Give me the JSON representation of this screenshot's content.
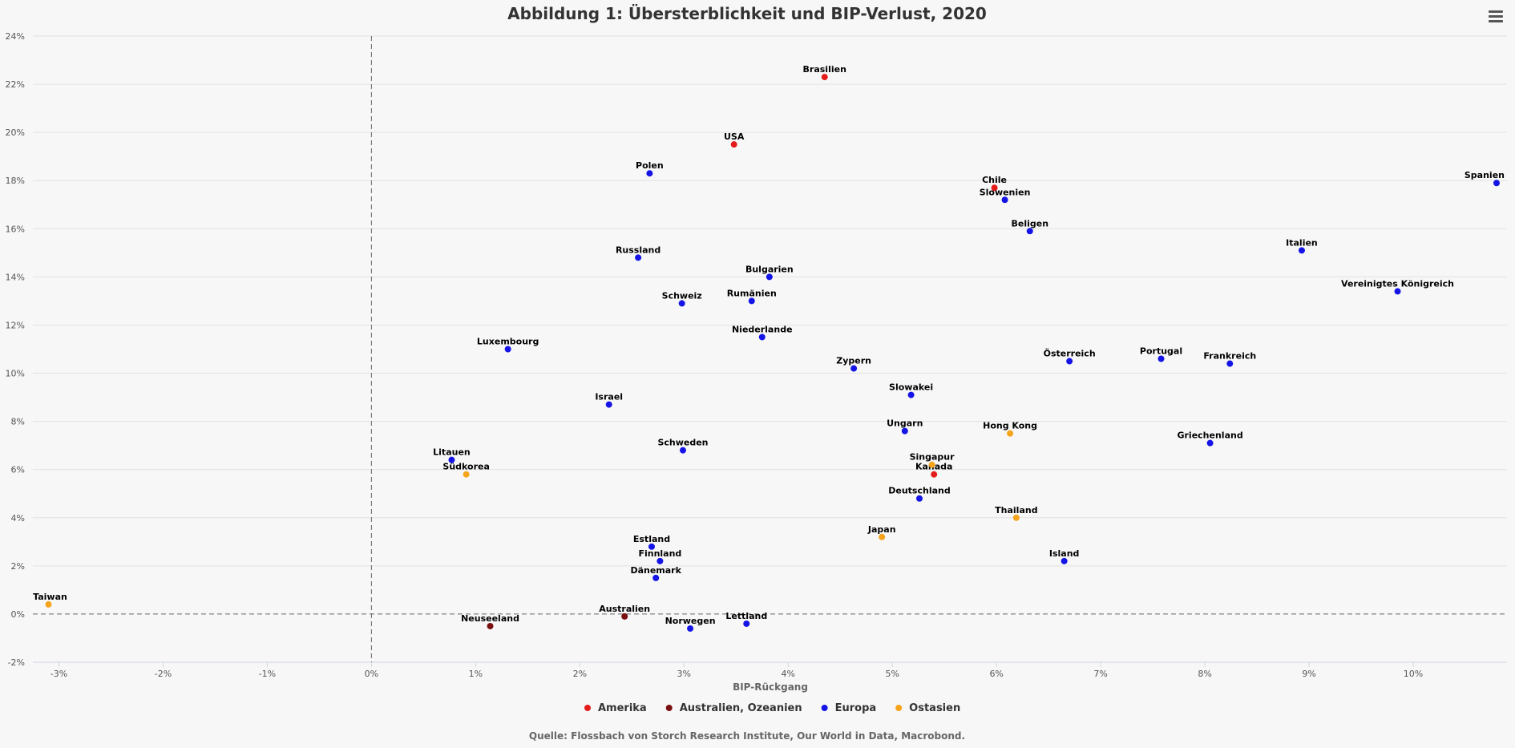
{
  "chart_data": {
    "type": "scatter",
    "title": "Abbildung 1: Übersterblichkeit und BIP-Verlust, 2020",
    "xlabel": "BIP-Rückgang",
    "ylabel": "",
    "xlim": [
      -3.25,
      10.9
    ],
    "ylim": [
      -2,
      24
    ],
    "x_ticks": [
      -3,
      -2,
      -1,
      0,
      1,
      2,
      3,
      4,
      5,
      6,
      7,
      8,
      9,
      10
    ],
    "y_ticks": [
      -2,
      0,
      2,
      4,
      6,
      8,
      10,
      12,
      14,
      16,
      18,
      20,
      22,
      24
    ],
    "tick_suffix": "%",
    "grid": true,
    "legend_position": "bottom-center",
    "colors": {
      "Amerika": "#e51c1c",
      "Australien, Ozeanien": "#7a0f0f",
      "Europa": "#1414e6",
      "Ostasien": "#f5a41c"
    },
    "series": [
      {
        "name": "Amerika",
        "points": [
          {
            "label": "Brasilien",
            "x": 4.35,
            "y": 22.3
          },
          {
            "label": "USA",
            "x": 3.48,
            "y": 19.5
          },
          {
            "label": "Chile",
            "x": 5.98,
            "y": 17.7
          },
          {
            "label": "Kanada",
            "x": 5.4,
            "y": 5.8
          }
        ]
      },
      {
        "name": "Australien, Ozeanien",
        "points": [
          {
            "label": "Neuseeland",
            "x": 1.14,
            "y": -0.5
          },
          {
            "label": "Australien",
            "x": 2.43,
            "y": -0.1
          }
        ]
      },
      {
        "name": "Europa",
        "points": [
          {
            "label": "Polen",
            "x": 2.67,
            "y": 18.3
          },
          {
            "label": "Slowenien",
            "x": 6.08,
            "y": 17.2
          },
          {
            "label": "Spanien",
            "x": 10.8,
            "y": 17.9
          },
          {
            "label": "Beligen",
            "x": 6.32,
            "y": 15.9
          },
          {
            "label": "Italien",
            "x": 8.93,
            "y": 15.1
          },
          {
            "label": "Russland",
            "x": 2.56,
            "y": 14.8
          },
          {
            "label": "Bulgarien",
            "x": 3.82,
            "y": 14.0
          },
          {
            "label": "Vereinigtes Königreich",
            "x": 9.85,
            "y": 13.4
          },
          {
            "label": "Schweiz",
            "x": 2.98,
            "y": 12.9
          },
          {
            "label": "Rumänien",
            "x": 3.65,
            "y": 13.0
          },
          {
            "label": "Niederlande",
            "x": 3.75,
            "y": 11.5
          },
          {
            "label": "Luxembourg",
            "x": 1.31,
            "y": 11.0
          },
          {
            "label": "Österreich",
            "x": 6.7,
            "y": 10.5
          },
          {
            "label": "Portugal",
            "x": 7.58,
            "y": 10.6
          },
          {
            "label": "Frankreich",
            "x": 8.24,
            "y": 10.4
          },
          {
            "label": "Zypern",
            "x": 4.63,
            "y": 10.2
          },
          {
            "label": "Slowakei",
            "x": 5.18,
            "y": 9.1
          },
          {
            "label": "Israel",
            "x": 2.28,
            "y": 8.7
          },
          {
            "label": "Ungarn",
            "x": 5.12,
            "y": 7.6
          },
          {
            "label": "Griechenland",
            "x": 8.05,
            "y": 7.1
          },
          {
            "label": "Schweden",
            "x": 2.99,
            "y": 6.8
          },
          {
            "label": "Litauen",
            "x": 0.77,
            "y": 6.4
          },
          {
            "label": "Deutschland",
            "x": 5.26,
            "y": 4.8
          },
          {
            "label": "Estland",
            "x": 2.69,
            "y": 2.8
          },
          {
            "label": "Finnland",
            "x": 2.77,
            "y": 2.2
          },
          {
            "label": "Island",
            "x": 6.65,
            "y": 2.2
          },
          {
            "label": "Dänemark",
            "x": 2.73,
            "y": 1.5
          },
          {
            "label": "Lettland",
            "x": 3.6,
            "y": -0.4
          },
          {
            "label": "Norwegen",
            "x": 3.06,
            "y": -0.6
          }
        ]
      },
      {
        "name": "Ostasien",
        "points": [
          {
            "label": "Hong Kong",
            "x": 6.13,
            "y": 7.5
          },
          {
            "label": "Singapur",
            "x": 5.38,
            "y": 6.2
          },
          {
            "label": "Südkorea",
            "x": 0.91,
            "y": 5.8
          },
          {
            "label": "Thailand",
            "x": 6.19,
            "y": 4.0
          },
          {
            "label": "Japan",
            "x": 4.9,
            "y": 3.2
          },
          {
            "label": "Taiwan",
            "x": -3.1,
            "y": 0.4
          }
        ]
      }
    ]
  },
  "source": "Quelle: Flossbach von Storch Research Institute, Our World in Data, Macrobond.",
  "menu_icon": "hamburger-menu-icon"
}
